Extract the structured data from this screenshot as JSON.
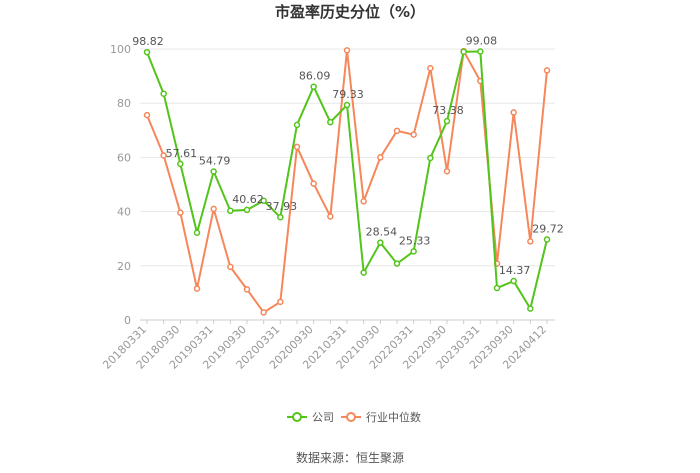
{
  "chart_data": {
    "type": "line",
    "title": "市盈率历史分位（%）",
    "xlabel": "",
    "ylabel": "",
    "ylim": [
      0,
      100
    ],
    "yticks": [
      0,
      20,
      40,
      60,
      80,
      100
    ],
    "grid": true,
    "legend_position": "bottom",
    "categories": [
      "20180331",
      "",
      "20180930",
      "",
      "20190331",
      "",
      "20190930",
      "",
      "20200331",
      "",
      "20200930",
      "",
      "20210331",
      "",
      "20210930",
      "",
      "20220331",
      "",
      "20220930",
      "",
      "20230331",
      "",
      "20230930",
      "",
      "20240412"
    ],
    "series": [
      {
        "name": "公司",
        "color": "#52c41a",
        "values": [
          98.82,
          83.5,
          57.61,
          32.2,
          54.79,
          40.3,
          40.62,
          44.0,
          37.93,
          72.0,
          86.09,
          73.0,
          79.33,
          17.5,
          28.54,
          20.8,
          25.33,
          59.8,
          73.38,
          99.0,
          99.08,
          11.8,
          14.37,
          4.2,
          29.72
        ],
        "labels": [
          "98.82",
          "",
          "57.61",
          "",
          "54.79",
          "",
          "40.62",
          "",
          "37.93",
          "",
          "86.09",
          "",
          "79.33",
          "",
          "28.54",
          "",
          "25.33",
          "",
          "73.38",
          "",
          "99.08",
          "",
          "14.37",
          "",
          "29.72"
        ]
      },
      {
        "name": "行业中位数",
        "color": "#f5875a",
        "values": [
          75.6,
          60.7,
          39.6,
          11.6,
          41.0,
          19.6,
          11.3,
          2.8,
          6.7,
          63.9,
          50.3,
          38.2,
          99.5,
          43.8,
          60.0,
          69.8,
          68.4,
          92.9,
          54.9,
          99.2,
          88.2,
          20.8,
          76.6,
          29.0,
          92.1
        ]
      }
    ]
  },
  "legend": {
    "items": [
      {
        "label": "公司",
        "color": "#52c41a"
      },
      {
        "label": "行业中位数",
        "color": "#f5875a"
      }
    ]
  },
  "source_text": "数据来源：恒生聚源"
}
